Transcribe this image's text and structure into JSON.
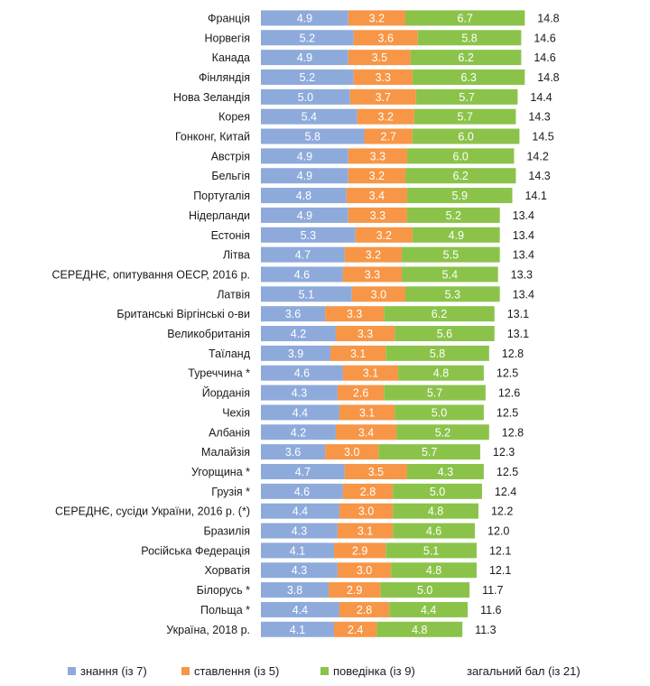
{
  "chart_data": {
    "type": "bar",
    "orientation": "horizontal",
    "stacked": true,
    "categories": [
      "Франція",
      "Норвегія",
      "Канада",
      "Фінляндія",
      "Нова Зеландія",
      "Корея",
      "Гонконг, Китай",
      "Австрія",
      "Бельгія",
      "Португалія",
      "Нідерланди",
      "Естонія",
      "Літва",
      "СЕРЕДНЄ, опитування ОЕСР, 2016 р.",
      "Латвія",
      "Британські Віргінські о-ви",
      "Великобританія",
      "Таїланд",
      "Туреччина *",
      "Йорданія",
      "Чехія",
      "Албанія",
      "Малайзія",
      "Угорщина *",
      "Грузія *",
      "СЕРЕДНЄ, сусіди України, 2016 р. (*)",
      "Бразилія",
      "Російська Федерація",
      "Хорватія",
      "Білорусь *",
      "Польща *",
      "Україна, 2018 р."
    ],
    "series": [
      {
        "name": "знання (із 7)",
        "color": "#8eaadb",
        "values": [
          4.9,
          5.2,
          4.9,
          5.2,
          5.0,
          5.4,
          5.8,
          4.9,
          4.9,
          4.8,
          4.9,
          5.3,
          4.7,
          4.6,
          5.1,
          3.6,
          4.2,
          3.9,
          4.6,
          4.3,
          4.4,
          4.2,
          3.6,
          4.7,
          4.6,
          4.4,
          4.3,
          4.1,
          4.3,
          3.8,
          4.4,
          4.1
        ]
      },
      {
        "name": "ставлення (із 5)",
        "color": "#f79646",
        "values": [
          3.2,
          3.6,
          3.5,
          3.3,
          3.7,
          3.2,
          2.7,
          3.3,
          3.2,
          3.4,
          3.3,
          3.2,
          3.2,
          3.3,
          3.0,
          3.3,
          3.3,
          3.1,
          3.1,
          2.6,
          3.1,
          3.4,
          3.0,
          3.5,
          2.8,
          3.0,
          3.1,
          2.9,
          3.0,
          2.9,
          2.8,
          2.4
        ]
      },
      {
        "name": "поведінка (із 9)",
        "color": "#8bc34a",
        "values": [
          6.7,
          5.8,
          6.2,
          6.3,
          5.7,
          5.7,
          6.0,
          6.0,
          6.2,
          5.9,
          5.2,
          4.9,
          5.5,
          5.4,
          5.3,
          6.2,
          5.6,
          5.8,
          4.8,
          5.7,
          5.0,
          5.2,
          5.7,
          4.3,
          5.0,
          4.8,
          4.6,
          5.1,
          4.8,
          5.0,
          4.4,
          4.8
        ]
      }
    ],
    "totals_label": "загальний бал (із 21)",
    "totals": [
      14.8,
      14.6,
      14.6,
      14.8,
      14.4,
      14.3,
      14.5,
      14.2,
      14.3,
      14.1,
      13.4,
      13.4,
      13.4,
      13.3,
      13.4,
      13.1,
      13.1,
      12.8,
      12.5,
      12.6,
      12.5,
      12.8,
      12.3,
      12.5,
      12.4,
      12.2,
      12.0,
      12.1,
      12.1,
      11.7,
      11.6,
      11.3
    ],
    "legend_position": "bottom",
    "grid": false
  }
}
